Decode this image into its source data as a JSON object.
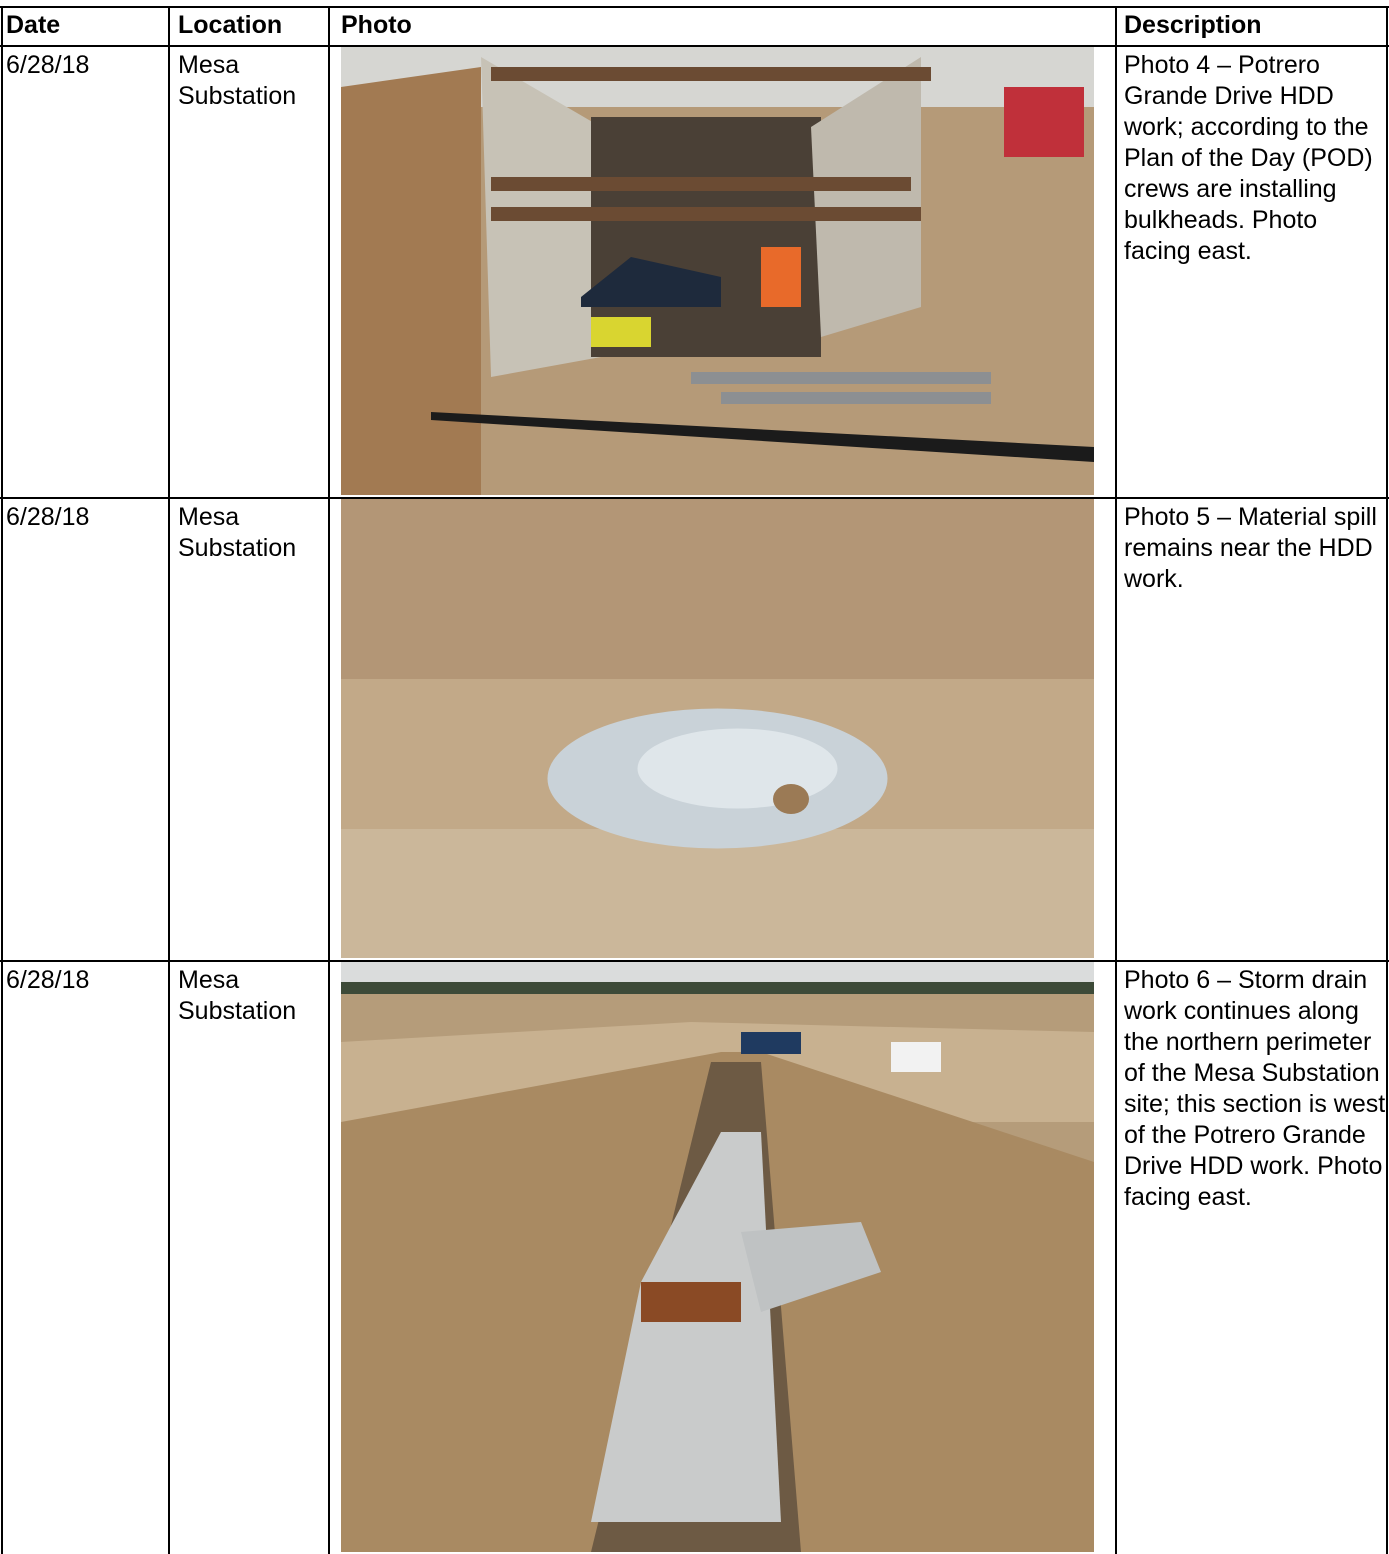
{
  "table": {
    "header": [
      "Date",
      "Location",
      "Photo",
      "Description"
    ],
    "rows": [
      {
        "date": "6/28/18",
        "location": "Mesa Substation",
        "description": "Photo 4 – Potrero Grande Drive HDD work; according to the Plan of the Day (POD) crews are installing bulkheads. Photo facing east."
      },
      {
        "date": "6/28/18",
        "location": "Mesa Substation",
        "description": "Photo 5 – Material spill remains near the HDD work."
      },
      {
        "date": "6/28/18",
        "location": "Mesa Substation",
        "description": "Photo 6 – Storm drain work continues along the northern perimeter of the Mesa Substation site; this section is west of the Potrero Grande Drive HDD work. Photo facing east."
      }
    ]
  }
}
